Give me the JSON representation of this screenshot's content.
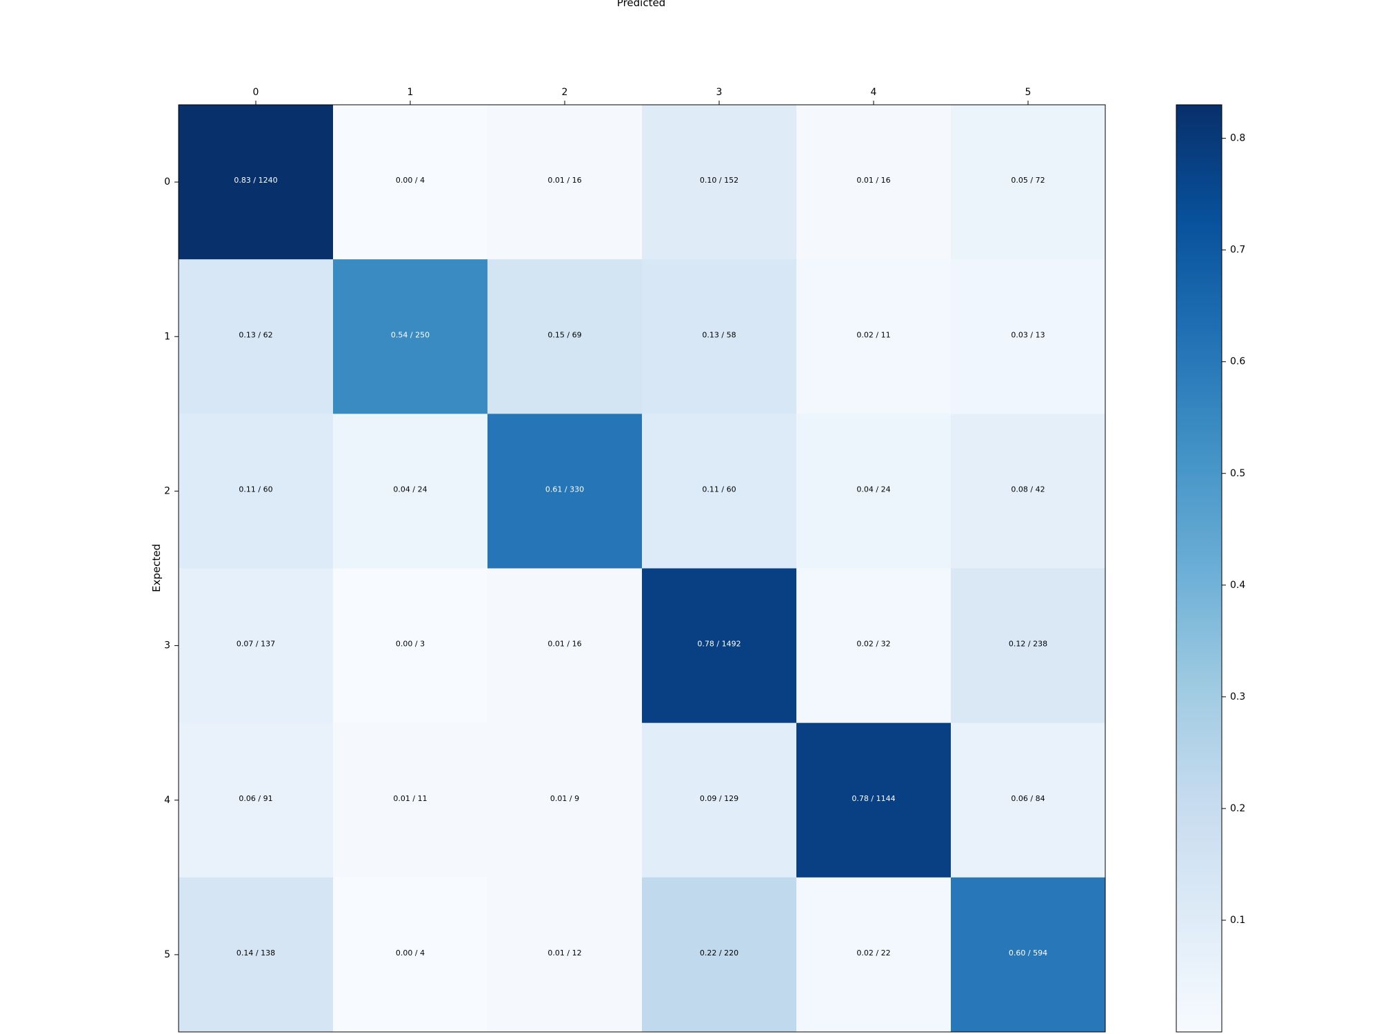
{
  "chart_data": {
    "type": "heatmap",
    "title": "",
    "xlabel": "Predicted",
    "ylabel": "Expected",
    "x_categories": [
      "0",
      "1",
      "2",
      "3",
      "4",
      "5"
    ],
    "y_categories": [
      "0",
      "1",
      "2",
      "3",
      "4",
      "5"
    ],
    "normalized": [
      [
        0.83,
        0.0,
        0.01,
        0.1,
        0.01,
        0.05
      ],
      [
        0.13,
        0.54,
        0.15,
        0.13,
        0.02,
        0.03
      ],
      [
        0.11,
        0.04,
        0.61,
        0.11,
        0.04,
        0.08
      ],
      [
        0.07,
        0.0,
        0.01,
        0.78,
        0.02,
        0.12
      ],
      [
        0.06,
        0.01,
        0.01,
        0.09,
        0.78,
        0.06
      ],
      [
        0.14,
        0.0,
        0.01,
        0.22,
        0.02,
        0.6
      ]
    ],
    "counts": [
      [
        1240,
        4,
        16,
        152,
        16,
        72
      ],
      [
        62,
        250,
        69,
        58,
        11,
        13
      ],
      [
        60,
        24,
        330,
        60,
        24,
        42
      ],
      [
        137,
        3,
        16,
        1492,
        32,
        238
      ],
      [
        91,
        11,
        9,
        129,
        1144,
        84
      ],
      [
        138,
        4,
        12,
        220,
        22,
        594
      ]
    ],
    "cell_labels": [
      [
        "0.83 / 1240",
        "0.00 / 4",
        "0.01 / 16",
        "0.10 / 152",
        "0.01 / 16",
        "0.05 / 72"
      ],
      [
        "0.13 / 62",
        "0.54 / 250",
        "0.15 / 69",
        "0.13 / 58",
        "0.02 / 11",
        "0.03 / 13"
      ],
      [
        "0.11 / 60",
        "0.04 / 24",
        "0.61 / 330",
        "0.11 / 60",
        "0.04 / 24",
        "0.08 / 42"
      ],
      [
        "0.07 / 137",
        "0.00 / 3",
        "0.01 / 16",
        "0.78 / 1492",
        "0.02 / 32",
        "0.12 / 238"
      ],
      [
        "0.06 / 91",
        "0.01 / 11",
        "0.01 / 9",
        "0.09 / 129",
        "0.78 / 1144",
        "0.06 / 84"
      ],
      [
        "0.14 / 138",
        "0.00 / 4",
        "0.01 / 12",
        "0.22 / 220",
        "0.02 / 22",
        "0.60 / 594"
      ]
    ],
    "colormap": "Blues",
    "colorbar": {
      "range": [
        0.0,
        0.83
      ],
      "ticks": [
        "0.1",
        "0.2",
        "0.3",
        "0.4",
        "0.5",
        "0.6",
        "0.7",
        "0.8"
      ],
      "tick_values": [
        0.1,
        0.2,
        0.3,
        0.4,
        0.5,
        0.6,
        0.7,
        0.8
      ],
      "colors": [
        "#f7fbff",
        "#deebf7",
        "#c6dbef",
        "#9ecae1",
        "#6baed6",
        "#4292c6",
        "#2171b5",
        "#08519c",
        "#08306b"
      ]
    },
    "x_axis_position": "top",
    "grid": false,
    "legend": "colorbar-right"
  }
}
